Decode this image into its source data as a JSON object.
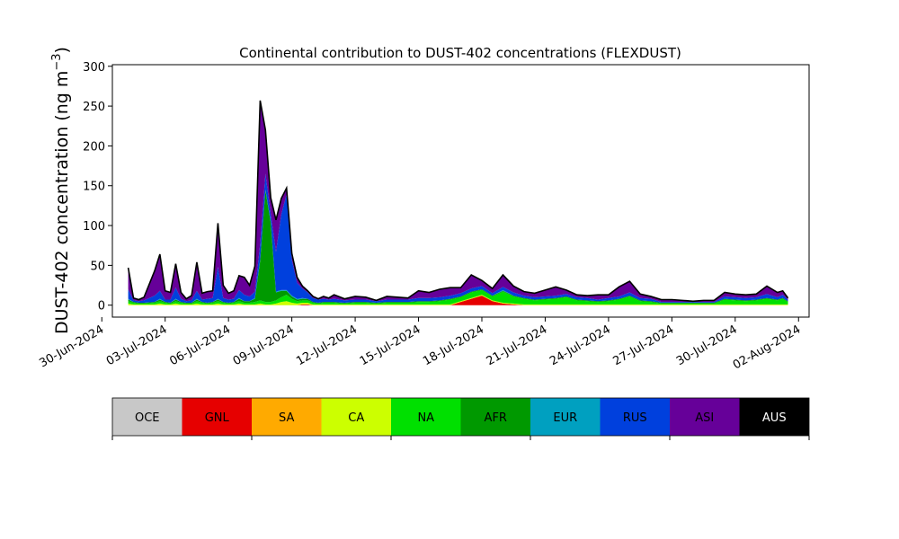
{
  "chart_data": {
    "type": "area",
    "title": "Continental contribution to DUST-402 concentrations (FLEXDUST)",
    "ylabel_main": "DUST-402 concentration (ng m",
    "ylabel_sup": "−3",
    "ylabel_close": ")",
    "xlabel": "",
    "ylim": [
      -15,
      302
    ],
    "xlim": [
      "2024-06-30T12:00",
      "2024-08-02T12:00"
    ],
    "y_ticks": [
      0,
      50,
      100,
      150,
      200,
      250,
      300
    ],
    "x_ticks": [
      "2024-06-30",
      "2024-07-03",
      "2024-07-06",
      "2024-07-09",
      "2024-07-12",
      "2024-07-15",
      "2024-07-18",
      "2024-07-21",
      "2024-07-24",
      "2024-07-27",
      "2024-07-30",
      "2024-08-02"
    ],
    "x_tick_labels": [
      "30-Jun-2024",
      "03-Jul-2024",
      "06-Jul-2024",
      "09-Jul-2024",
      "12-Jul-2024",
      "15-Jul-2024",
      "18-Jul-2024",
      "21-Jul-2024",
      "24-Jul-2024",
      "27-Jul-2024",
      "30-Jul-2024",
      "02-Aug-2024"
    ],
    "x": [
      "2024-07-01T06:00",
      "2024-07-01T12:00",
      "2024-07-01T18:00",
      "2024-07-02T00:00",
      "2024-07-02T12:00",
      "2024-07-02T18:00",
      "2024-07-03T00:00",
      "2024-07-03T06:00",
      "2024-07-03T12:00",
      "2024-07-03T18:00",
      "2024-07-04T00:00",
      "2024-07-04T06:00",
      "2024-07-04T12:00",
      "2024-07-04T18:00",
      "2024-07-05T00:00",
      "2024-07-05T06:00",
      "2024-07-05T12:00",
      "2024-07-05T18:00",
      "2024-07-06T00:00",
      "2024-07-06T06:00",
      "2024-07-06T12:00",
      "2024-07-06T18:00",
      "2024-07-07T00:00",
      "2024-07-07T06:00",
      "2024-07-07T12:00",
      "2024-07-07T18:00",
      "2024-07-08T00:00",
      "2024-07-08T06:00",
      "2024-07-08T12:00",
      "2024-07-08T18:00",
      "2024-07-09T00:00",
      "2024-07-09T06:00",
      "2024-07-09T12:00",
      "2024-07-09T18:00",
      "2024-07-10T00:00",
      "2024-07-10T06:00",
      "2024-07-10T12:00",
      "2024-07-10T18:00",
      "2024-07-11T00:00",
      "2024-07-11T12:00",
      "2024-07-12T00:00",
      "2024-07-12T12:00",
      "2024-07-13T00:00",
      "2024-07-13T12:00",
      "2024-07-14T00:00",
      "2024-07-14T12:00",
      "2024-07-15T00:00",
      "2024-07-15T12:00",
      "2024-07-16T00:00",
      "2024-07-16T12:00",
      "2024-07-17T00:00",
      "2024-07-17T12:00",
      "2024-07-18T00:00",
      "2024-07-18T12:00",
      "2024-07-19T00:00",
      "2024-07-19T12:00",
      "2024-07-20T00:00",
      "2024-07-20T12:00",
      "2024-07-21T00:00",
      "2024-07-21T12:00",
      "2024-07-22T00:00",
      "2024-07-22T12:00",
      "2024-07-23T00:00",
      "2024-07-23T12:00",
      "2024-07-24T00:00",
      "2024-07-24T12:00",
      "2024-07-25T00:00",
      "2024-07-25T12:00",
      "2024-07-26T00:00",
      "2024-07-26T12:00",
      "2024-07-27T00:00",
      "2024-07-27T12:00",
      "2024-07-28T00:00",
      "2024-07-28T12:00",
      "2024-07-29T00:00",
      "2024-07-29T12:00",
      "2024-07-30T00:00",
      "2024-07-30T12:00",
      "2024-07-31T00:00",
      "2024-07-31T12:00",
      "2024-08-01T00:00",
      "2024-08-01T06:00",
      "2024-08-01T12:00"
    ],
    "series": [
      {
        "name": "GNL",
        "color": "#e60000",
        "values": [
          0,
          0,
          0,
          0,
          0,
          0,
          0,
          0,
          0,
          0,
          0,
          0,
          0,
          0,
          0,
          0,
          0,
          0,
          0,
          0,
          0,
          0,
          0,
          0,
          0,
          0,
          0,
          0,
          0,
          0,
          0,
          0,
          1,
          1,
          0,
          0,
          0,
          0,
          0,
          0,
          0,
          0,
          0,
          0,
          0,
          0,
          0,
          0,
          0,
          0,
          4,
          8,
          12,
          5,
          2,
          1,
          0,
          0,
          0,
          0,
          0,
          0,
          0,
          0,
          0,
          0,
          0,
          0,
          0,
          0,
          0,
          0,
          0,
          0,
          0,
          0,
          0,
          0,
          0,
          0,
          0,
          0,
          0
        ]
      },
      {
        "name": "SA",
        "color": "#ffaa00",
        "values": [
          0,
          0,
          0,
          0,
          0,
          0,
          0,
          0,
          0,
          0,
          0,
          0,
          0,
          0,
          0,
          0,
          0,
          0,
          0,
          0,
          0,
          0,
          0,
          0,
          0,
          0,
          0,
          0,
          0,
          0,
          0,
          0,
          0,
          0,
          0,
          0,
          0,
          0,
          0,
          0,
          0,
          0,
          0,
          0,
          0,
          0,
          0,
          0,
          0,
          0,
          0,
          0,
          0,
          0,
          0,
          0,
          0,
          0,
          0,
          0,
          0,
          0,
          0,
          0,
          0,
          0,
          0,
          0,
          0,
          0,
          0,
          0,
          0,
          0,
          0,
          0,
          0,
          0,
          0,
          0,
          0,
          0,
          0
        ]
      },
      {
        "name": "CA",
        "color": "#ccff00",
        "values": [
          2,
          1,
          1,
          1,
          1,
          2,
          1,
          1,
          2,
          1,
          1,
          1,
          2,
          1,
          1,
          1,
          2,
          1,
          1,
          1,
          2,
          1,
          1,
          1,
          2,
          1,
          1,
          2,
          4,
          5,
          3,
          2,
          2,
          2,
          1,
          1,
          1,
          1,
          1,
          1,
          1,
          1,
          1,
          1,
          1,
          1,
          1,
          1,
          1,
          1,
          1,
          1,
          1,
          1,
          1,
          1,
          1,
          1,
          1,
          1,
          1,
          1,
          1,
          1,
          1,
          1,
          1,
          1,
          1,
          1,
          1,
          1,
          1,
          1,
          1,
          1,
          1,
          1,
          1,
          1,
          1,
          1,
          1
        ]
      },
      {
        "name": "NA",
        "color": "#00e000",
        "values": [
          3,
          2,
          1,
          1,
          2,
          3,
          2,
          1,
          3,
          2,
          1,
          1,
          3,
          2,
          1,
          2,
          3,
          2,
          1,
          2,
          3,
          2,
          2,
          3,
          4,
          3,
          3,
          4,
          6,
          8,
          5,
          3,
          3,
          3,
          2,
          1,
          2,
          2,
          2,
          1,
          2,
          2,
          1,
          2,
          2,
          2,
          3,
          3,
          4,
          6,
          5,
          7,
          6,
          5,
          14,
          9,
          7,
          5,
          6,
          7,
          9,
          5,
          4,
          3,
          4,
          6,
          10,
          4,
          3,
          1,
          1,
          1,
          1,
          1,
          1,
          6,
          5,
          4,
          5,
          7,
          5,
          7,
          3
        ]
      },
      {
        "name": "AFR",
        "color": "#009900",
        "values": [
          2,
          1,
          1,
          1,
          1,
          2,
          1,
          1,
          2,
          1,
          1,
          1,
          2,
          1,
          1,
          1,
          2,
          1,
          1,
          1,
          3,
          2,
          2,
          4,
          50,
          140,
          100,
          10,
          8,
          5,
          3,
          2,
          2,
          2,
          1,
          1,
          1,
          1,
          1,
          1,
          1,
          1,
          1,
          1,
          1,
          1,
          1,
          1,
          1,
          1,
          1,
          1,
          1,
          1,
          1,
          1,
          1,
          1,
          1,
          1,
          1,
          1,
          1,
          1,
          1,
          1,
          1,
          1,
          1,
          1,
          1,
          1,
          1,
          1,
          1,
          1,
          1,
          1,
          1,
          1,
          1,
          1,
          1
        ]
      },
      {
        "name": "EUR",
        "color": "#00a0c0",
        "values": [
          1,
          0,
          0,
          0,
          0,
          1,
          0,
          0,
          1,
          0,
          0,
          0,
          1,
          0,
          0,
          0,
          1,
          0,
          0,
          0,
          1,
          0,
          0,
          1,
          1,
          1,
          1,
          1,
          1,
          1,
          1,
          1,
          1,
          0,
          0,
          0,
          0,
          0,
          0,
          0,
          0,
          0,
          0,
          0,
          0,
          0,
          0,
          0,
          0,
          0,
          0,
          0,
          0,
          0,
          1,
          0,
          0,
          0,
          0,
          0,
          0,
          0,
          0,
          0,
          0,
          0,
          0,
          0,
          0,
          0,
          0,
          0,
          0,
          0,
          0,
          0,
          0,
          0,
          0,
          0,
          0,
          0,
          0
        ]
      },
      {
        "name": "RUS",
        "color": "#0040dd",
        "values": [
          12,
          2,
          2,
          3,
          8,
          10,
          3,
          4,
          14,
          4,
          2,
          3,
          10,
          3,
          5,
          5,
          40,
          5,
          4,
          4,
          10,
          8,
          6,
          8,
          20,
          20,
          10,
          50,
          95,
          120,
          45,
          20,
          12,
          8,
          5,
          4,
          4,
          3,
          4,
          3,
          3,
          3,
          2,
          3,
          3,
          3,
          4,
          4,
          4,
          4,
          4,
          4,
          4,
          3,
          4,
          4,
          3,
          3,
          3,
          3,
          3,
          3,
          3,
          2,
          3,
          3,
          4,
          3,
          3,
          1,
          1,
          1,
          1,
          1,
          1,
          3,
          3,
          3,
          3,
          5,
          3,
          4,
          2
        ]
      },
      {
        "name": "ASI",
        "color": "#660099",
        "values": [
          27,
          3,
          2,
          4,
          31,
          46,
          11,
          9,
          30,
          8,
          3,
          6,
          36,
          8,
          9,
          9,
          55,
          16,
          8,
          10,
          18,
          22,
          14,
          32,
          180,
          55,
          20,
          40,
          20,
          8,
          8,
          7,
          3,
          2,
          2,
          1,
          3,
          2,
          5,
          2,
          4,
          3,
          1,
          4,
          3,
          2,
          9,
          7,
          10,
          10,
          7,
          17,
          7,
          6,
          15,
          8,
          5,
          5,
          8,
          11,
          5,
          3,
          3,
          6,
          4,
          12,
          14,
          5,
          3,
          3,
          3,
          2,
          1,
          2,
          2,
          5,
          4,
          4,
          4,
          10,
          6,
          5,
          2
        ]
      },
      {
        "name": "AUS",
        "color": "#000000",
        "values": [
          0,
          0,
          0,
          0,
          0,
          0,
          0,
          0,
          0,
          0,
          0,
          0,
          0,
          0,
          0,
          0,
          0,
          0,
          0,
          0,
          0,
          0,
          0,
          0,
          0,
          0,
          0,
          0,
          0,
          0,
          0,
          0,
          0,
          0,
          0,
          0,
          0,
          0,
          0,
          0,
          0,
          0,
          0,
          0,
          0,
          0,
          0,
          0,
          0,
          0,
          0,
          0,
          0,
          0,
          0,
          0,
          0,
          0,
          0,
          0,
          0,
          0,
          0,
          0,
          0,
          0,
          0,
          0,
          0,
          0,
          0,
          0,
          0,
          0,
          0,
          0,
          0,
          0,
          0,
          0,
          0,
          0,
          0
        ]
      }
    ],
    "total_line_color": "#000000",
    "legend": {
      "placement": "bottom",
      "items": [
        {
          "label": "OCE",
          "color": "#c8c8c8",
          "text_color": "#000000"
        },
        {
          "label": "GNL",
          "color": "#e60000",
          "text_color": "#000000"
        },
        {
          "label": "SA",
          "color": "#ffaa00",
          "text_color": "#000000"
        },
        {
          "label": "CA",
          "color": "#ccff00",
          "text_color": "#000000"
        },
        {
          "label": "NA",
          "color": "#00e000",
          "text_color": "#000000"
        },
        {
          "label": "AFR",
          "color": "#009900",
          "text_color": "#000000"
        },
        {
          "label": "EUR",
          "color": "#00a0c0",
          "text_color": "#000000"
        },
        {
          "label": "RUS",
          "color": "#0040dd",
          "text_color": "#000000"
        },
        {
          "label": "ASI",
          "color": "#660099",
          "text_color": "#000000"
        },
        {
          "label": "AUS",
          "color": "#000000",
          "text_color": "#ffffff"
        }
      ]
    }
  }
}
